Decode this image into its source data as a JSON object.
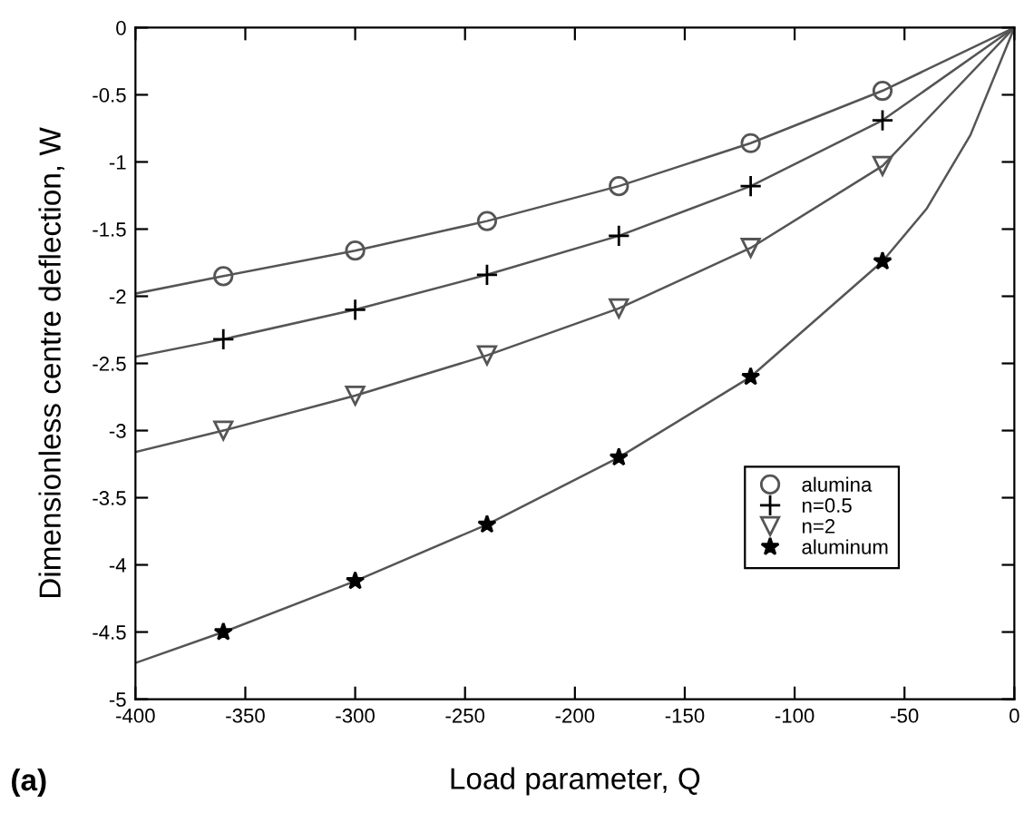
{
  "chart_data": {
    "type": "line",
    "xlabel": "Load parameter, Q",
    "ylabel": "Dimensionless centre deflection, W",
    "annotations": [
      "(a)"
    ],
    "xlim": [
      -400,
      0
    ],
    "xticks": [
      -400,
      -350,
      -300,
      -250,
      -200,
      -150,
      -100,
      -50,
      0
    ],
    "ylim": [
      -5,
      0
    ],
    "yticks": [
      -5,
      -4.5,
      -4,
      -3.5,
      -3,
      -2.5,
      -2,
      -1.5,
      -1,
      -0.5,
      0
    ],
    "grid": false,
    "legend": "lower right",
    "series": [
      {
        "color": "#555555",
        "x": [
          -400,
          -360,
          -300,
          -240,
          -180,
          -120,
          -60,
          0
        ],
        "values": [
          -1.98,
          -1.85,
          -1.66,
          -1.44,
          -1.18,
          -0.86,
          -0.47,
          0
        ]
      },
      {
        "color": "#555555",
        "x": [
          -400,
          -360,
          -300,
          -240,
          -180,
          -120,
          -60,
          0
        ],
        "values": [
          -2.45,
          -2.32,
          -2.1,
          -1.84,
          -1.55,
          -1.18,
          -0.69,
          0
        ]
      },
      {
        "color": "#555555",
        "x": [
          -400,
          -360,
          -300,
          -240,
          -180,
          -120,
          -60,
          0
        ],
        "values": [
          -3.16,
          -3.0,
          -2.74,
          -2.44,
          -2.09,
          -1.64,
          -1.03,
          0
        ]
      },
      {
        "color": "#555555",
        "x": [
          -400,
          -360,
          -300,
          -240,
          -180,
          -120,
          -60,
          -40,
          -20,
          0
        ],
        "values": [
          -4.73,
          -4.5,
          -4.12,
          -3.7,
          -3.2,
          -2.6,
          -1.74,
          -1.35,
          -0.8,
          0
        ]
      },
      {
        "type": "scatter",
        "name": "alumina",
        "marker": "circle",
        "color": "#555555",
        "x": [
          -360,
          -300,
          -240,
          -180,
          -120,
          -60
        ],
        "values": [
          -1.85,
          -1.66,
          -1.44,
          -1.18,
          -0.86,
          -0.47
        ]
      },
      {
        "type": "scatter",
        "name": "n=0.5",
        "marker": "cross",
        "color": "#000000",
        "x": [
          -360,
          -300,
          -240,
          -180,
          -120,
          -60
        ],
        "values": [
          -2.32,
          -2.1,
          -1.84,
          -1.55,
          -1.18,
          -0.69
        ]
      },
      {
        "type": "scatter",
        "name": "n=2",
        "marker": "triangle",
        "color": "#555555",
        "x": [
          -360,
          -300,
          -240,
          -180,
          -120,
          -60
        ],
        "values": [
          -3.0,
          -2.74,
          -2.44,
          -2.09,
          -1.64,
          -1.03
        ]
      },
      {
        "type": "scatter",
        "name": "aluminum",
        "marker": "star",
        "color": "#000000",
        "x": [
          -360,
          -300,
          -240,
          -180,
          -120,
          -60
        ],
        "values": [
          -4.5,
          -4.12,
          -3.7,
          -3.2,
          -2.6,
          -1.74
        ]
      }
    ]
  }
}
